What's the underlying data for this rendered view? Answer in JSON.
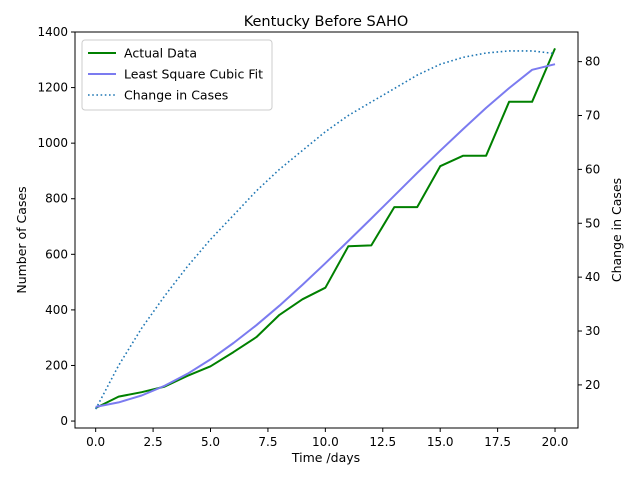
{
  "chart_data": {
    "type": "line",
    "title": "Kentucky Before SAHO",
    "xlabel": "Time /days",
    "ylabel": "Number of Cases",
    "y2label": "Change in Cases",
    "xlim": [
      -0.9,
      21.0
    ],
    "ylim": [
      -25,
      1400
    ],
    "y2lim": [
      12.0,
      85.5
    ],
    "x_ticks": [
      0.0,
      2.5,
      5.0,
      7.5,
      10.0,
      12.5,
      15.0,
      17.5,
      20.0
    ],
    "x_tick_labels": [
      "0.0",
      "2.5",
      "5.0",
      "7.5",
      "10.0",
      "12.5",
      "15.0",
      "17.5",
      "20.0"
    ],
    "y_ticks": [
      0,
      200,
      400,
      600,
      800,
      1000,
      1200,
      1400
    ],
    "y2_ticks": [
      20,
      30,
      40,
      50,
      60,
      70,
      80
    ],
    "grid": false,
    "legend_position": "top-left",
    "series": [
      {
        "name": "Actual Data",
        "axis": "left",
        "color": "#008000",
        "style": "solid",
        "x": [
          0,
          1,
          2,
          3,
          4,
          5,
          6,
          7,
          8,
          9,
          10,
          11,
          12,
          13,
          14,
          15,
          16,
          17,
          18,
          19,
          20
        ],
        "values": [
          47,
          88,
          104,
          124,
          163,
          197,
          248,
          302,
          382,
          438,
          480,
          629,
          632,
          770,
          770,
          917,
          955,
          955,
          1149,
          1149,
          1341
        ]
      },
      {
        "name": "Least Square Cubic Fit",
        "axis": "left",
        "color": "#7b7bf0",
        "style": "solid",
        "x": [
          0,
          1,
          2,
          3,
          4,
          5,
          6,
          7,
          8,
          9,
          10,
          11,
          12,
          13,
          14,
          15,
          16,
          17,
          18,
          19,
          20
        ],
        "values": [
          51,
          67,
          92,
          127,
          170,
          222,
          281,
          345,
          415,
          490,
          568,
          648,
          729,
          811,
          893,
          973,
          1051,
          1127,
          1198,
          1264,
          1284
        ]
      },
      {
        "name": "Change in Cases",
        "axis": "right",
        "color": "#1f77b4",
        "style": "dotted",
        "x": [
          0,
          1,
          2,
          3,
          4,
          5,
          6,
          7,
          8,
          9,
          10,
          11,
          12,
          13,
          14,
          15,
          16,
          17,
          18,
          19,
          20
        ],
        "values": [
          15.5,
          23.6,
          30.5,
          36.5,
          42.0,
          47.0,
          51.5,
          56.0,
          60.0,
          63.5,
          67.0,
          70.0,
          72.5,
          75.0,
          77.5,
          79.5,
          80.8,
          81.6,
          82.0,
          82.0,
          81.5
        ]
      }
    ]
  }
}
